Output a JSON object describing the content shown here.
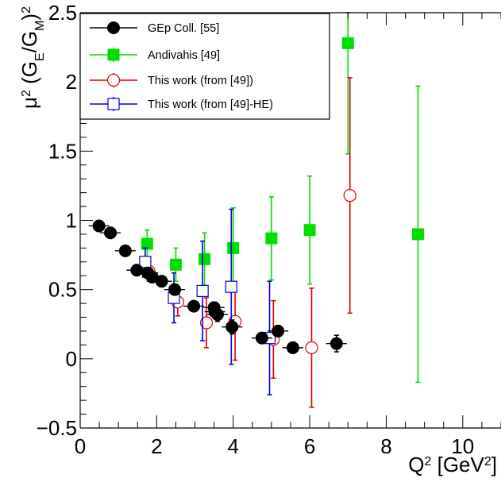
{
  "chart_data": {
    "type": "scatter",
    "xlabel": {
      "base": "Q",
      "sup": "2",
      "unit_open": " [GeV",
      "unit_sup": "2",
      "unit_close": "]"
    },
    "ylabel": {
      "mu": "μ",
      "mu_sup": "2",
      "open": " (G",
      "e_sub": "E",
      "slash": "/G",
      "m_sub": "M",
      "close": ")",
      "outer_sup": "2"
    },
    "xlim": [
      0,
      11
    ],
    "ylim": [
      -0.5,
      2.5
    ],
    "x_ticks": [
      0,
      2,
      4,
      6,
      8,
      10
    ],
    "x_tick_labels": [
      "0",
      "2",
      "4",
      "6",
      "8",
      "10"
    ],
    "y_ticks": [
      -0.5,
      0,
      0.5,
      1,
      1.5,
      2,
      2.5
    ],
    "y_tick_labels": [
      "−0.5",
      "0",
      "0.5",
      "1",
      "1.5",
      "2",
      "2.5"
    ],
    "legend_position": "top-left",
    "series": [
      {
        "name": "GEp Coll. [55]",
        "color": "#000000",
        "marker": "filled-circle",
        "points": [
          {
            "x": 0.49,
            "y": 0.96,
            "err": 0.0
          },
          {
            "x": 0.79,
            "y": 0.91,
            "err": 0.0
          },
          {
            "x": 1.18,
            "y": 0.78,
            "err": 0.0
          },
          {
            "x": 1.48,
            "y": 0.64,
            "err": 0.03
          },
          {
            "x": 1.77,
            "y": 0.62,
            "err": 0.03
          },
          {
            "x": 1.88,
            "y": 0.59,
            "err": 0.03
          },
          {
            "x": 2.13,
            "y": 0.56,
            "err": 0.04
          },
          {
            "x": 2.47,
            "y": 0.5,
            "err": 0.03
          },
          {
            "x": 2.97,
            "y": 0.38,
            "err": 0.03
          },
          {
            "x": 3.5,
            "y": 0.37,
            "err": 0.04
          },
          {
            "x": 3.52,
            "y": 0.34,
            "err": 0.04
          },
          {
            "x": 3.59,
            "y": 0.32,
            "err": 0.05
          },
          {
            "x": 3.97,
            "y": 0.23,
            "err": 0.05
          },
          {
            "x": 4.75,
            "y": 0.15,
            "err": 0.02
          },
          {
            "x": 5.17,
            "y": 0.2,
            "err": 0.04
          },
          {
            "x": 5.56,
            "y": 0.08,
            "err": 0.04
          },
          {
            "x": 6.7,
            "y": 0.11,
            "err": 0.06
          }
        ]
      },
      {
        "name": "Andivahis [49]",
        "color": "#00dd00",
        "marker": "filled-square",
        "points": [
          {
            "x": 1.75,
            "y": 0.83,
            "err": 0.1
          },
          {
            "x": 2.5,
            "y": 0.68,
            "err": 0.12
          },
          {
            "x": 3.25,
            "y": 0.72,
            "err": 0.19
          },
          {
            "x": 4.0,
            "y": 0.8,
            "err": 0.29
          },
          {
            "x": 5.0,
            "y": 0.87,
            "err": 0.3
          },
          {
            "x": 6.0,
            "y": 0.93,
            "err": 0.39
          },
          {
            "x": 7.0,
            "y": 2.28,
            "err": 0.8
          },
          {
            "x": 8.83,
            "y": 0.9,
            "err": 1.07
          }
        ]
      },
      {
        "name": "This work (from [49])",
        "color": "#e00000",
        "marker": "open-circle",
        "points": [
          {
            "x": 1.8,
            "y": 0.63,
            "err": 0.07
          },
          {
            "x": 2.55,
            "y": 0.41,
            "err": 0.1
          },
          {
            "x": 3.3,
            "y": 0.26,
            "err": 0.18
          },
          {
            "x": 4.05,
            "y": 0.27,
            "err": 0.28
          },
          {
            "x": 5.05,
            "y": 0.14,
            "err": 0.28
          },
          {
            "x": 6.05,
            "y": 0.08,
            "err": 0.43
          },
          {
            "x": 7.05,
            "y": 1.18,
            "err": 0.85
          }
        ]
      },
      {
        "name": "This work (from [49]-HE)",
        "color": "#0000e0",
        "marker": "open-square",
        "points": [
          {
            "x": 1.7,
            "y": 0.7,
            "err": 0.1
          },
          {
            "x": 2.45,
            "y": 0.44,
            "err": 0.18
          },
          {
            "x": 3.2,
            "y": 0.49,
            "err": 0.36
          },
          {
            "x": 3.95,
            "y": 0.52,
            "err": 0.56
          },
          {
            "x": 4.95,
            "y": 0.15,
            "err": 0.41
          }
        ]
      }
    ]
  }
}
